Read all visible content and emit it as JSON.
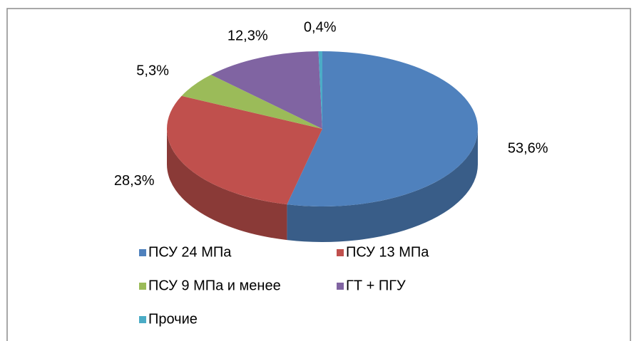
{
  "chart_data": {
    "type": "pie",
    "3d": true,
    "categories": [
      "ПСУ 24 МПа",
      "ПСУ 13 МПа",
      "ПСУ 9 МПа и менее",
      "ГТ + ПГУ",
      "Прочие"
    ],
    "values": [
      53.6,
      28.3,
      5.3,
      12.3,
      0.4
    ],
    "value_labels": [
      "53,6%",
      "28,3%",
      "5,3%",
      "12,3%",
      "0,4%"
    ],
    "colors": [
      "#4f81bd",
      "#c0504d",
      "#9bbb59",
      "#8064a2",
      "#4bacc6"
    ],
    "legend": "bottom"
  }
}
